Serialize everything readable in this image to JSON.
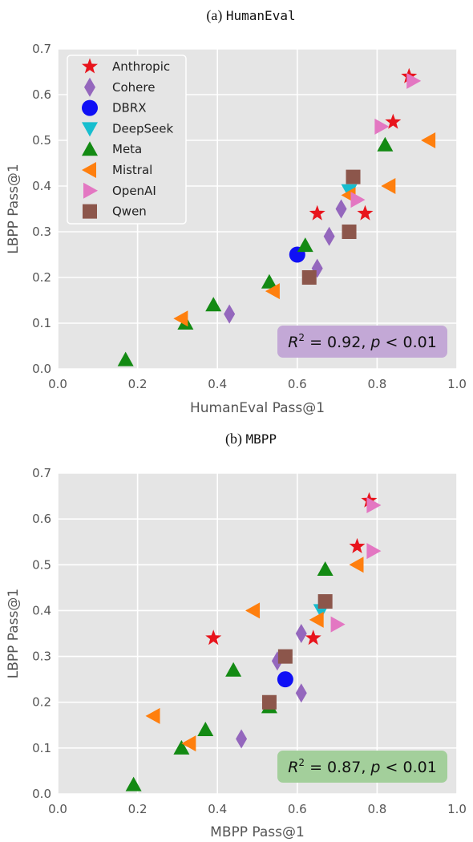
{
  "colors": {
    "Anthropic": "#e8141c",
    "Cohere": "#9467bd",
    "DBRX": "#1010f5",
    "DeepSeek": "#17becf",
    "Meta": "#138a13",
    "Mistral": "#ff7f0e",
    "OpenAI": "#e377c2",
    "Qwen": "#8c564b",
    "background": "#e5e5e5",
    "grid": "#ffffff"
  },
  "markers": {
    "Anthropic": "star",
    "Cohere": "thin-diamond",
    "DBRX": "circle",
    "DeepSeek": "triangle-down",
    "Meta": "triangle-up",
    "Mistral": "triangle-left",
    "OpenAI": "triangle-right",
    "Qwen": "square"
  },
  "chart_data": [
    {
      "type": "scatter",
      "title_prefix": "(a)",
      "title_code": "HumanEval",
      "xlabel": "HumanEval Pass@1",
      "ylabel": "LBPP Pass@1",
      "xlim": [
        0,
        1.0
      ],
      "ylim": [
        0,
        0.7
      ],
      "xticks": [
        "0.0",
        "0.2",
        "0.4",
        "0.6",
        "0.8",
        "1.0"
      ],
      "yticks": [
        "0.0",
        "0.1",
        "0.2",
        "0.3",
        "0.4",
        "0.5",
        "0.6",
        "0.7"
      ],
      "grid": true,
      "legend": "upper-left",
      "annotation": {
        "r2": "0.92",
        "p": "0.01",
        "color": "#c3a8d6",
        "position": "lower-right"
      },
      "series": [
        {
          "name": "Anthropic",
          "points": [
            [
              0.88,
              0.64
            ],
            [
              0.84,
              0.54
            ],
            [
              0.65,
              0.34
            ],
            [
              0.77,
              0.34
            ]
          ]
        },
        {
          "name": "Cohere",
          "points": [
            [
              0.71,
              0.35
            ],
            [
              0.68,
              0.29
            ],
            [
              0.65,
              0.22
            ],
            [
              0.43,
              0.12
            ]
          ]
        },
        {
          "name": "DBRX",
          "points": [
            [
              0.6,
              0.25
            ]
          ]
        },
        {
          "name": "DeepSeek",
          "points": [
            [
              0.73,
              0.39
            ]
          ]
        },
        {
          "name": "Meta",
          "points": [
            [
              0.82,
              0.49
            ],
            [
              0.62,
              0.27
            ],
            [
              0.53,
              0.19
            ],
            [
              0.39,
              0.14
            ],
            [
              0.32,
              0.1
            ],
            [
              0.17,
              0.02
            ]
          ]
        },
        {
          "name": "Mistral",
          "points": [
            [
              0.93,
              0.5
            ],
            [
              0.83,
              0.4
            ],
            [
              0.73,
              0.38
            ],
            [
              0.54,
              0.17
            ],
            [
              0.31,
              0.11
            ]
          ]
        },
        {
          "name": "OpenAI",
          "points": [
            [
              0.89,
              0.63
            ],
            [
              0.81,
              0.53
            ],
            [
              0.75,
              0.37
            ]
          ]
        },
        {
          "name": "Qwen",
          "points": [
            [
              0.74,
              0.42
            ],
            [
              0.73,
              0.3
            ],
            [
              0.63,
              0.2
            ]
          ]
        }
      ]
    },
    {
      "type": "scatter",
      "title_prefix": "(b)",
      "title_code": "MBPP",
      "xlabel": "MBPP Pass@1",
      "ylabel": "LBPP Pass@1",
      "xlim": [
        0,
        1.0
      ],
      "ylim": [
        0,
        0.7
      ],
      "xticks": [
        "0.0",
        "0.2",
        "0.4",
        "0.6",
        "0.8",
        "1.0"
      ],
      "yticks": [
        "0.0",
        "0.1",
        "0.2",
        "0.3",
        "0.4",
        "0.5",
        "0.6",
        "0.7"
      ],
      "grid": true,
      "legend": "none",
      "annotation": {
        "r2": "0.87",
        "p": "0.01",
        "color": "#a3cf9b",
        "position": "lower-right"
      },
      "series": [
        {
          "name": "Anthropic",
          "points": [
            [
              0.78,
              0.64
            ],
            [
              0.75,
              0.54
            ],
            [
              0.64,
              0.34
            ],
            [
              0.39,
              0.34
            ]
          ]
        },
        {
          "name": "Cohere",
          "points": [
            [
              0.61,
              0.35
            ],
            [
              0.55,
              0.29
            ],
            [
              0.61,
              0.22
            ],
            [
              0.46,
              0.12
            ]
          ]
        },
        {
          "name": "DBRX",
          "points": [
            [
              0.57,
              0.25
            ]
          ]
        },
        {
          "name": "DeepSeek",
          "points": [
            [
              0.66,
              0.4
            ]
          ]
        },
        {
          "name": "Meta",
          "points": [
            [
              0.67,
              0.49
            ],
            [
              0.44,
              0.27
            ],
            [
              0.53,
              0.19
            ],
            [
              0.37,
              0.14
            ],
            [
              0.31,
              0.1
            ],
            [
              0.19,
              0.02
            ]
          ]
        },
        {
          "name": "Mistral",
          "points": [
            [
              0.75,
              0.5
            ],
            [
              0.49,
              0.4
            ],
            [
              0.65,
              0.38
            ],
            [
              0.24,
              0.17
            ],
            [
              0.33,
              0.11
            ]
          ]
        },
        {
          "name": "OpenAI",
          "points": [
            [
              0.79,
              0.63
            ],
            [
              0.79,
              0.53
            ],
            [
              0.7,
              0.37
            ]
          ]
        },
        {
          "name": "Qwen",
          "points": [
            [
              0.67,
              0.42
            ],
            [
              0.57,
              0.3
            ],
            [
              0.53,
              0.2
            ]
          ]
        }
      ]
    }
  ]
}
